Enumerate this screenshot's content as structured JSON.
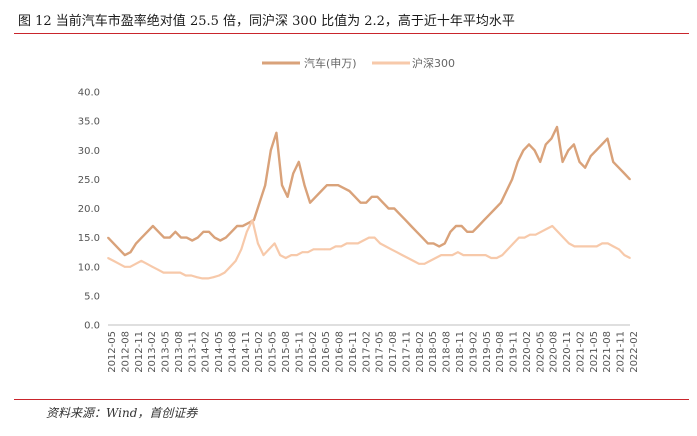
{
  "title": "图  12 当前汽车市盈率绝对值 25.5 倍，同沪深 300 比值为 2.2，高于近十年平均水平",
  "source": "资料来源：Wind，首创证券",
  "colors": {
    "auto": "#d9a27a",
    "csi300": "#f7c9aa",
    "accent": "#c9252c"
  },
  "chart_data": {
    "type": "line",
    "ylim": [
      0,
      40
    ],
    "yticks": [
      "0.0",
      "5.0",
      "10.0",
      "15.0",
      "20.0",
      "25.0",
      "30.0",
      "35.0",
      "40.0"
    ],
    "x_tick_labels": [
      "2012-05",
      "2012-08",
      "2012-11",
      "2013-02",
      "2013-05",
      "2013-08",
      "2013-11",
      "2014-02",
      "2014-05",
      "2014-08",
      "2014-11",
      "2015-02",
      "2015-05",
      "2015-08",
      "2015-11",
      "2016-02",
      "2016-05",
      "2016-08",
      "2016-11",
      "2017-02",
      "2017-05",
      "2017-08",
      "2017-11",
      "2018-02",
      "2018-05",
      "2018-08",
      "2018-11",
      "2019-02",
      "2019-05",
      "2019-08",
      "2019-11",
      "2020-02",
      "2020-05",
      "2020-08",
      "2020-11",
      "2021-02",
      "2021-05",
      "2021-08",
      "2021-11",
      "2022-02"
    ],
    "legend_position": "top",
    "series": [
      {
        "name": "汽车(申万)",
        "color": "#d9a27a",
        "values": [
          15,
          14,
          13,
          12,
          12.5,
          14,
          15,
          16,
          17,
          16,
          15,
          15,
          16,
          15,
          15,
          14.5,
          15,
          16,
          16,
          15,
          14.5,
          15,
          16,
          17,
          17,
          17.5,
          18,
          21,
          24,
          30,
          33,
          24,
          22,
          26,
          28,
          24,
          21,
          22,
          23,
          24,
          24,
          24,
          23.5,
          23,
          22,
          21,
          21,
          22,
          22,
          21,
          20,
          20,
          19,
          18,
          17,
          16,
          15,
          14,
          14,
          13.5,
          14,
          16,
          17,
          17,
          16,
          16,
          17,
          18,
          19,
          20,
          21,
          23,
          25,
          28,
          30,
          31,
          30,
          28,
          31,
          32,
          34,
          28,
          30,
          31,
          28,
          27,
          29,
          30,
          31,
          32,
          28,
          27,
          26,
          25
        ]
      },
      {
        "name": "沪深300",
        "color": "#f7c9aa",
        "values": [
          11.5,
          11,
          10.5,
          10,
          10,
          10.5,
          11,
          10.5,
          10,
          9.5,
          9,
          9,
          9,
          9,
          8.5,
          8.5,
          8.2,
          8,
          8,
          8.2,
          8.5,
          9,
          10,
          11,
          13,
          16,
          18,
          14,
          12,
          13,
          14,
          12,
          11.5,
          12,
          12,
          12.5,
          12.5,
          13,
          13,
          13,
          13,
          13.5,
          13.5,
          14,
          14,
          14,
          14.5,
          15,
          15,
          14,
          13.5,
          13,
          12.5,
          12,
          11.5,
          11,
          10.5,
          10.5,
          11,
          11.5,
          12,
          12,
          12,
          12.5,
          12,
          12,
          12,
          12,
          12,
          11.5,
          11.5,
          12,
          13,
          14,
          15,
          15,
          15.5,
          15.5,
          16,
          16.5,
          17,
          16,
          15,
          14,
          13.5,
          13.5,
          13.5,
          13.5,
          13.5,
          14,
          14,
          13.5,
          13,
          12,
          11.5
        ]
      }
    ]
  }
}
